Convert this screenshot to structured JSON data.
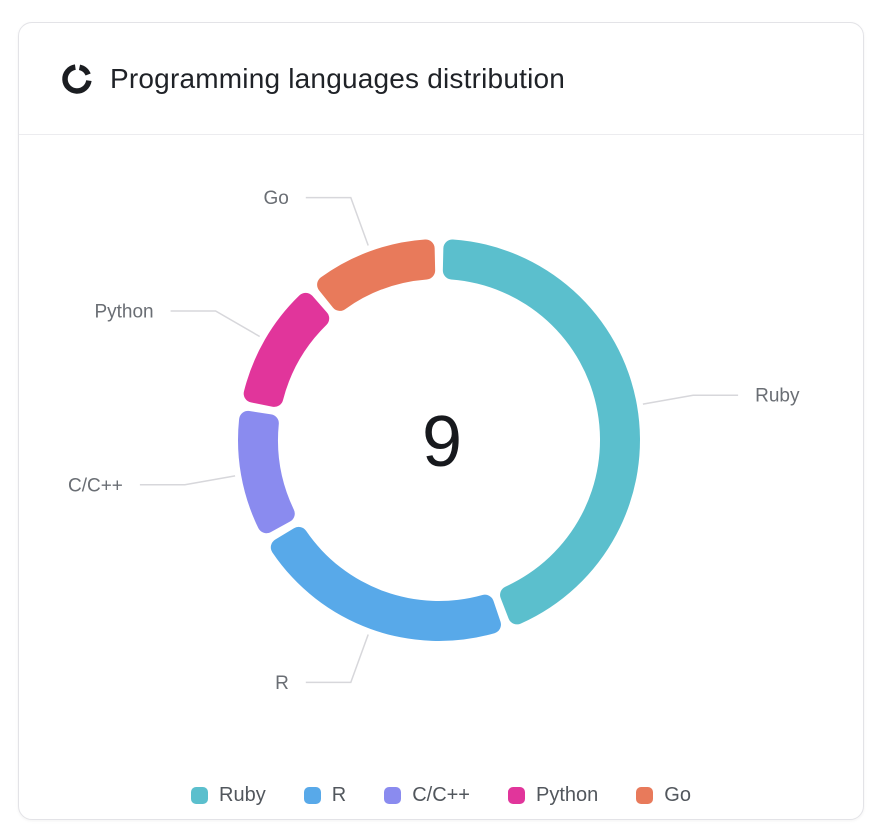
{
  "header": {
    "title": "Programming languages distribution",
    "icon": "donut-chart-icon"
  },
  "chart_data": {
    "type": "pie",
    "subtype": "donut",
    "title": "Programming languages distribution",
    "center_label": "9",
    "total": 9,
    "categories": [
      "Ruby",
      "R",
      "C/C++",
      "Python",
      "Go"
    ],
    "values": [
      4,
      2,
      1,
      1,
      1
    ],
    "colors": [
      "#5BBFCD",
      "#58A9E9",
      "#8A8BEF",
      "#E1359B",
      "#E87A5B"
    ],
    "legend_position": "bottom",
    "start_angle_deg": 0,
    "direction": "clockwise",
    "callout_label_color": "#6A6E74",
    "connector_color": "#D7D7DB",
    "center_label_color": "#17191D"
  }
}
